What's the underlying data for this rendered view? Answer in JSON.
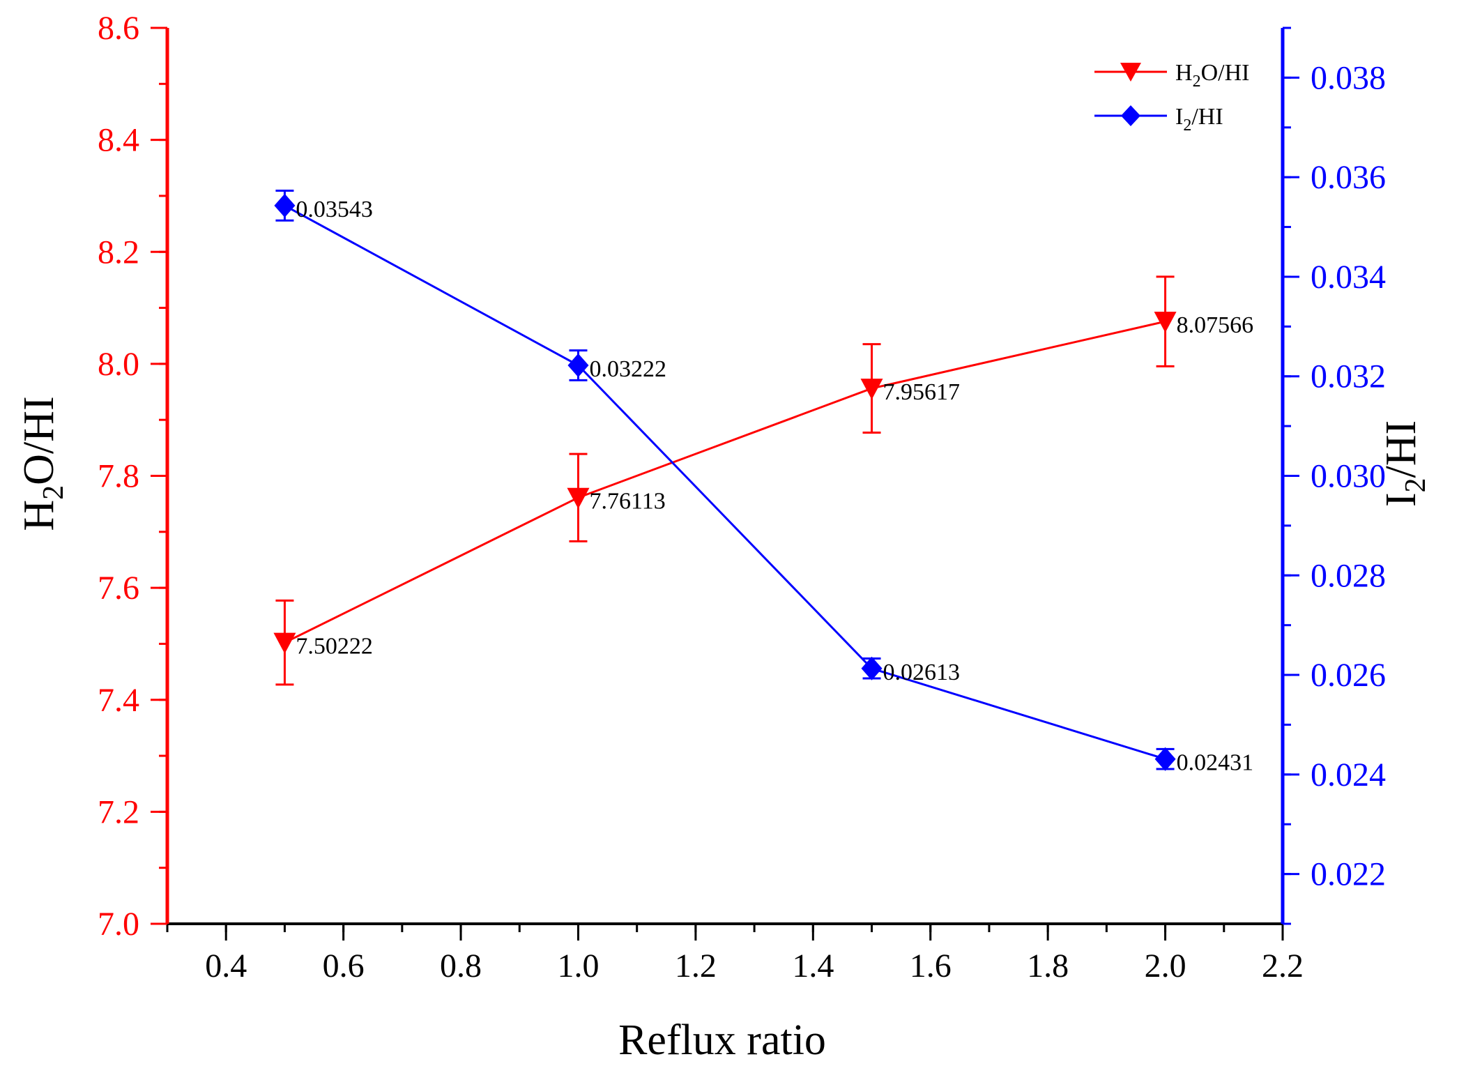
{
  "chart_data": {
    "type": "line",
    "xlabel": "Reflux ratio",
    "ylabel_left": {
      "main": "H",
      "sub": "2",
      "rest": "O/HI"
    },
    "ylabel_right": {
      "main": "I",
      "sub": "2",
      "rest": "/HI"
    },
    "xlim": [
      0.3,
      2.2
    ],
    "ylim_left": [
      7.0,
      8.6
    ],
    "ylim_right": [
      0.021,
      0.039
    ],
    "x_ticks": [
      "0.4",
      "0.6",
      "0.8",
      "1.0",
      "1.2",
      "1.4",
      "1.6",
      "1.8",
      "2.0",
      "2.2"
    ],
    "y_ticks_left": [
      "7.0",
      "7.2",
      "7.4",
      "7.6",
      "7.8",
      "8.0",
      "8.2",
      "8.4",
      "8.6"
    ],
    "y_ticks_right": [
      "0.022",
      "0.024",
      "0.026",
      "0.028",
      "0.030",
      "0.032",
      "0.034",
      "0.036",
      "0.038"
    ],
    "series": [
      {
        "name": "H2O/HI",
        "legend": {
          "main": "H",
          "sub": "2",
          "rest": "O/HI"
        },
        "axis": "left",
        "color": "#ff0000",
        "marker": "triangle-down",
        "x": [
          0.5,
          1.0,
          1.5,
          2.0
        ],
        "values": [
          7.50222,
          7.76113,
          7.95617,
          8.07566
        ],
        "error": [
          0.075,
          0.078,
          0.079,
          0.08
        ],
        "labels": [
          "7.50222",
          "7.76113",
          "7.95617",
          "8.07566"
        ]
      },
      {
        "name": "I2/HI",
        "legend": {
          "main": "I",
          "sub": "2",
          "rest": "/HI"
        },
        "axis": "right",
        "color": "#0000ff",
        "marker": "diamond",
        "x": [
          0.5,
          1.0,
          1.5,
          2.0
        ],
        "values": [
          0.03543,
          0.03222,
          0.02613,
          0.02431
        ],
        "error": [
          0.0003,
          0.0003,
          0.0002,
          0.0002
        ],
        "labels": [
          "0.03543",
          "0.03222",
          "0.02613",
          "0.02431"
        ]
      }
    ],
    "legend_position": "top-right",
    "grid": false
  }
}
